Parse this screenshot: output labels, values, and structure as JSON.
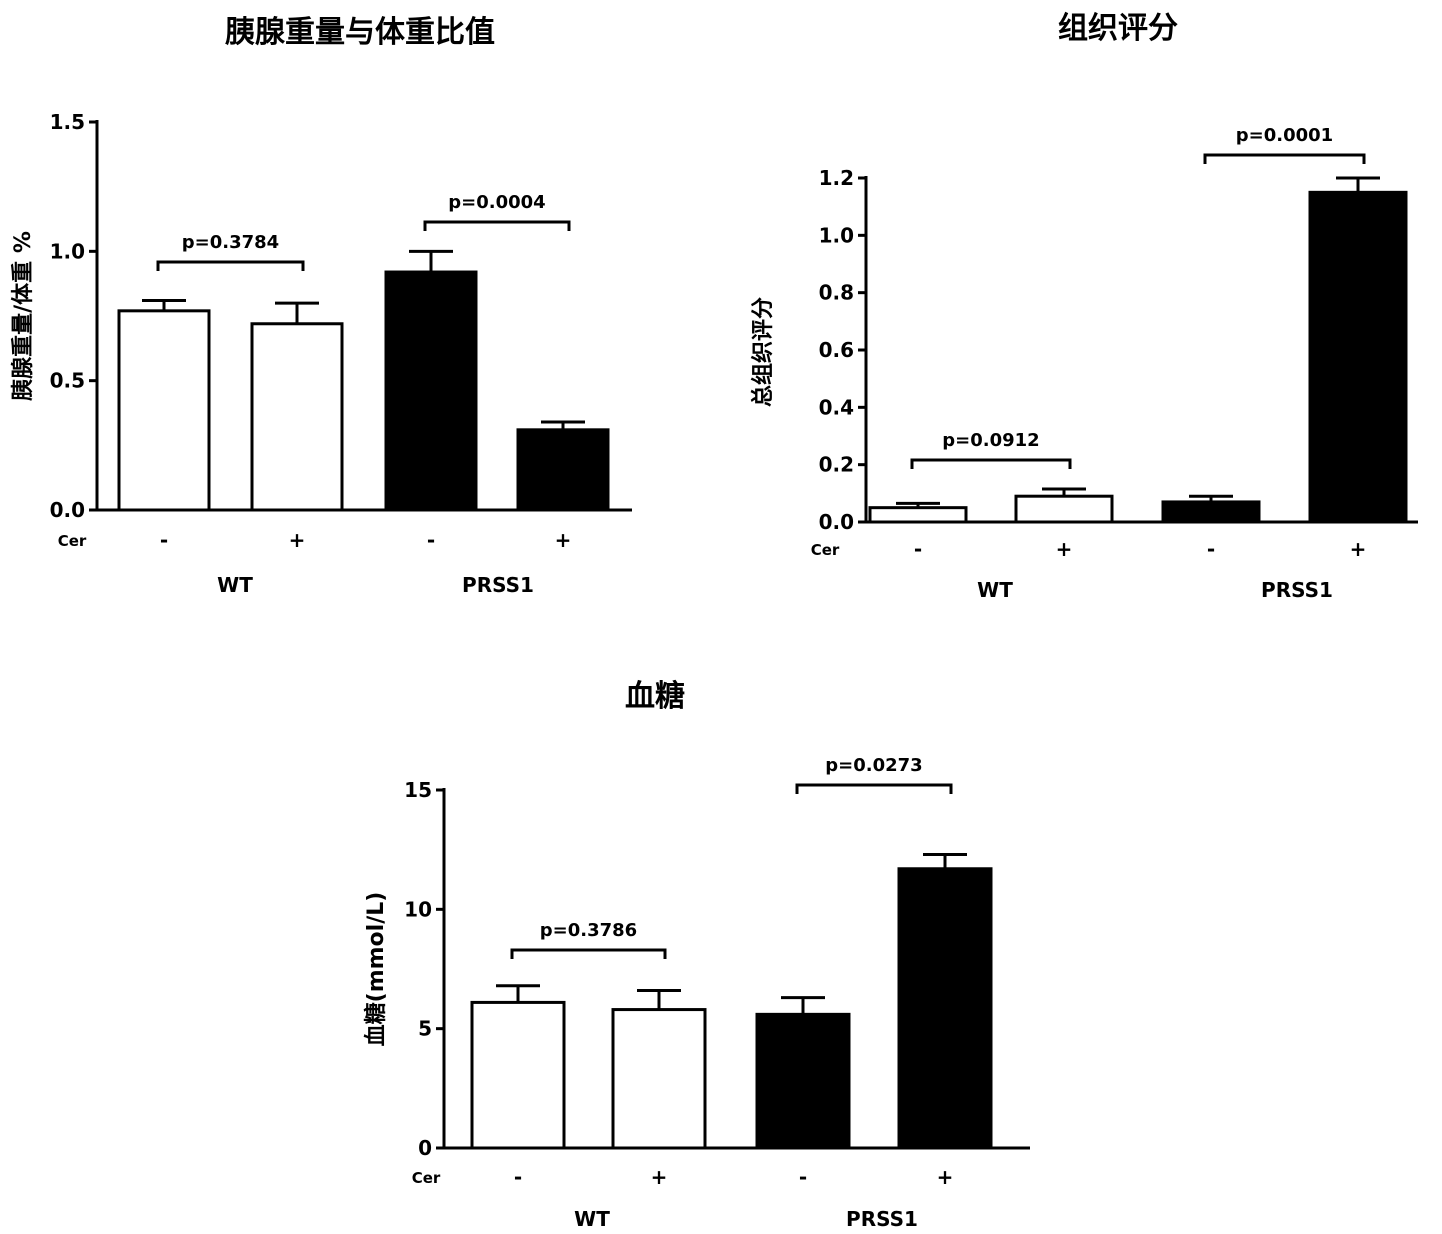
{
  "chart_data": [
    {
      "type": "bar",
      "title": "胰腺重量与体重比值",
      "ylabel": "胰腺重量/体重 %",
      "ylim": [
        0,
        1.5
      ],
      "yticks": [
        "0.0",
        "0.5",
        "1.0",
        "1.5"
      ],
      "treatment_label": "Cer",
      "treatments": [
        "-",
        "+",
        "-",
        "+"
      ],
      "groups": [
        "WT",
        "PRSS1"
      ],
      "values": [
        0.77,
        0.72,
        0.92,
        0.31
      ],
      "errors": [
        0.04,
        0.08,
        0.08,
        0.03
      ],
      "fill": [
        "#ffffff",
        "#ffffff",
        "#000000",
        "#000000"
      ],
      "comparisons": [
        {
          "from": 0,
          "to": 1,
          "label": "p=0.3784"
        },
        {
          "from": 2,
          "to": 3,
          "label": "p=0.0004"
        }
      ]
    },
    {
      "type": "bar",
      "title": "组织评分",
      "ylabel": "总组织评分",
      "ylim": [
        0,
        1.2
      ],
      "yticks": [
        "0.0",
        "0.2",
        "0.4",
        "0.6",
        "0.8",
        "1.0",
        "1.2"
      ],
      "treatment_label": "Cer",
      "treatments": [
        "-",
        "+",
        "-",
        "+"
      ],
      "groups": [
        "WT",
        "PRSS1"
      ],
      "values": [
        0.05,
        0.09,
        0.07,
        1.15
      ],
      "errors": [
        0.015,
        0.025,
        0.02,
        0.05
      ],
      "fill": [
        "#ffffff",
        "#ffffff",
        "#000000",
        "#000000"
      ],
      "comparisons": [
        {
          "from": 0,
          "to": 1,
          "label": "p=0.0912"
        },
        {
          "from": 2,
          "to": 3,
          "label": "p=0.0001"
        }
      ]
    },
    {
      "type": "bar",
      "title": "血糖",
      "ylabel": "血糖(mmol/L)",
      "ylim": [
        0,
        15
      ],
      "yticks": [
        "0",
        "5",
        "10",
        "15"
      ],
      "treatment_label": "Cer",
      "treatments": [
        "-",
        "+",
        "-",
        "+"
      ],
      "groups": [
        "WT",
        "PRSS1"
      ],
      "values": [
        6.1,
        5.8,
        5.6,
        11.7
      ],
      "errors": [
        0.7,
        0.8,
        0.7,
        0.6
      ],
      "fill": [
        "#ffffff",
        "#ffffff",
        "#000000",
        "#000000"
      ],
      "comparisons": [
        {
          "from": 0,
          "to": 1,
          "label": "p=0.3786"
        },
        {
          "from": 2,
          "to": 3,
          "label": "p=0.0273"
        }
      ]
    }
  ]
}
